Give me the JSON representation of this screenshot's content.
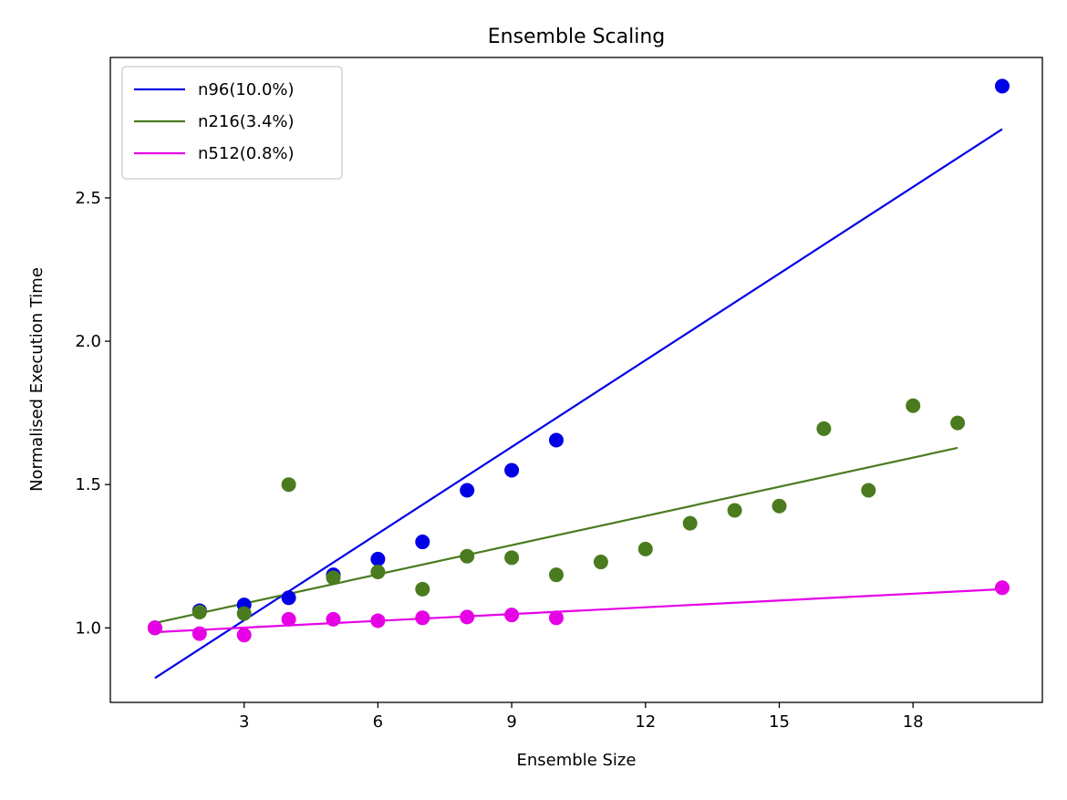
{
  "chart_data": {
    "type": "scatter",
    "title": "Ensemble Scaling",
    "xlabel": "Ensemble Size",
    "ylabel": "Normalised Execution Time",
    "xlim": [
      0.0,
      20.9
    ],
    "ylim": [
      0.74,
      2.99
    ],
    "xticks": [
      3,
      6,
      9,
      12,
      15,
      18
    ],
    "yticks": [
      1.0,
      1.5,
      2.0,
      2.5
    ],
    "xtick_labels": [
      "3",
      "6",
      "9",
      "12",
      "15",
      "18"
    ],
    "ytick_labels": [
      "1.0",
      "1.5",
      "2.0",
      "2.5"
    ],
    "grid": false,
    "legend_position": "top-left",
    "series": [
      {
        "name": "n96(10.0%)",
        "color": "#0000e6",
        "points": [
          [
            1,
            1.0
          ],
          [
            2,
            1.06
          ],
          [
            3,
            1.08
          ],
          [
            4,
            1.105
          ],
          [
            5,
            1.185
          ],
          [
            6,
            1.24
          ],
          [
            7,
            1.3
          ],
          [
            8,
            1.48
          ],
          [
            9,
            1.55
          ],
          [
            10,
            1.655
          ],
          [
            20,
            2.89
          ]
        ],
        "fit": [
          [
            1,
            0.825
          ],
          [
            20,
            2.74
          ]
        ]
      },
      {
        "name": "n216(3.4%)",
        "color": "#4a7b1f",
        "points": [
          [
            1,
            1.0
          ],
          [
            2,
            1.055
          ],
          [
            3,
            1.05
          ],
          [
            4,
            1.5
          ],
          [
            5,
            1.175
          ],
          [
            6,
            1.195
          ],
          [
            7,
            1.135
          ],
          [
            8,
            1.25
          ],
          [
            9,
            1.245
          ],
          [
            10,
            1.185
          ],
          [
            11,
            1.23
          ],
          [
            12,
            1.275
          ],
          [
            13,
            1.365
          ],
          [
            14,
            1.41
          ],
          [
            15,
            1.425
          ],
          [
            16,
            1.695
          ],
          [
            17,
            1.48
          ],
          [
            18,
            1.775
          ],
          [
            19,
            1.715
          ]
        ],
        "fit": [
          [
            1,
            1.017
          ],
          [
            19,
            1.628
          ]
        ]
      },
      {
        "name": "n512(0.8%)",
        "color": "#e600e6",
        "points": [
          [
            1,
            1.0
          ],
          [
            2,
            0.98
          ],
          [
            3,
            0.975
          ],
          [
            4,
            1.03
          ],
          [
            5,
            1.03
          ],
          [
            6,
            1.025
          ],
          [
            7,
            1.035
          ],
          [
            8,
            1.038
          ],
          [
            9,
            1.045
          ],
          [
            10,
            1.035
          ],
          [
            20,
            1.14
          ]
        ],
        "fit": [
          [
            1,
            0.985
          ],
          [
            20,
            1.135
          ]
        ]
      }
    ]
  }
}
